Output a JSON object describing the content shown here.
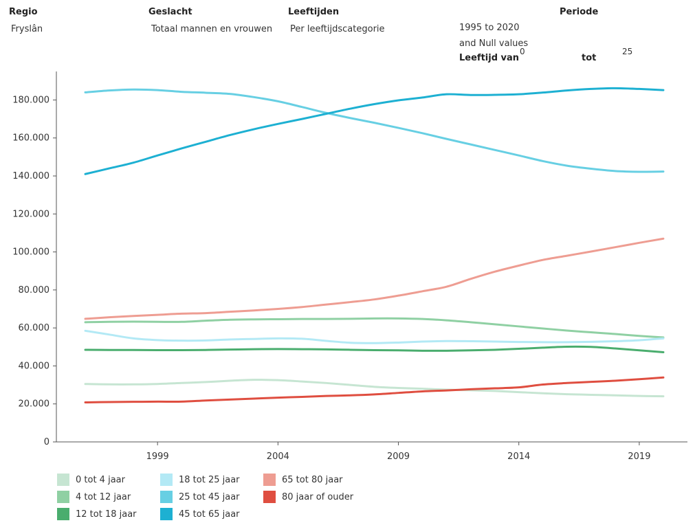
{
  "header": {
    "regio_label": "Regio",
    "regio_value": "Fryslân",
    "geslacht_label": "Geslacht",
    "geslacht_value": "Totaal mannen en vrouwen",
    "leeftijden_label": "Leeftijden",
    "leeftijden_value": "Per leeftijdscategorie",
    "periode_label": "Periode",
    "periode_value": "1995 to 2020",
    "periode_null": "and Null values",
    "leeftijd_van_label": "Leeftijd van",
    "leeftijd_van_value": "0",
    "tot_label": "tot",
    "tot_value": "25"
  },
  "chart_data": {
    "type": "line",
    "x": [
      1996,
      1997,
      1998,
      1999,
      2000,
      2001,
      2002,
      2003,
      2004,
      2005,
      2006,
      2007,
      2008,
      2009,
      2010,
      2011,
      2012,
      2013,
      2014,
      2015,
      2016,
      2017,
      2018,
      2019,
      2020
    ],
    "xticks": [
      1999,
      2004,
      2009,
      2014,
      2019
    ],
    "xlim": [
      1994.8,
      2021
    ],
    "ylim": [
      0,
      195000
    ],
    "yticks": [
      0,
      20000,
      40000,
      60000,
      80000,
      100000,
      120000,
      140000,
      160000,
      180000
    ],
    "ytick_labels": [
      "0",
      "20.000",
      "40.000",
      "60.000",
      "80.000",
      "100.000",
      "120.000",
      "140.000",
      "160.000",
      "180.000"
    ],
    "grid": false,
    "legend_position": "bottom-left",
    "series": [
      {
        "name": "0 tot 4 jaar",
        "color": "#c6e5d2",
        "values": [
          30500,
          30300,
          30300,
          30500,
          31000,
          31500,
          32200,
          32700,
          32500,
          31800,
          31000,
          30000,
          29000,
          28400,
          28000,
          27500,
          27200,
          26800,
          26200,
          25600,
          25100,
          24800,
          24500,
          24200,
          24000
        ]
      },
      {
        "name": "4 tot 12 jaar",
        "color": "#8fd0a3",
        "values": [
          63000,
          63200,
          63300,
          63200,
          63200,
          63800,
          64300,
          64500,
          64600,
          64700,
          64700,
          64800,
          65000,
          65000,
          64700,
          64000,
          63000,
          61900,
          60800,
          59700,
          58600,
          57700,
          56800,
          55800,
          55000
        ]
      },
      {
        "name": "12 tot 18 jaar",
        "color": "#4aad6e",
        "values": [
          48500,
          48400,
          48400,
          48300,
          48300,
          48400,
          48600,
          48800,
          48900,
          48800,
          48700,
          48500,
          48300,
          48200,
          48000,
          48000,
          48200,
          48500,
          49000,
          49600,
          50100,
          50000,
          49200,
          48200,
          47200
        ]
      },
      {
        "name": "18 tot 25 jaar",
        "color": "#b3e9f5",
        "values": [
          58500,
          56500,
          54500,
          53600,
          53300,
          53400,
          53900,
          54200,
          54500,
          54300,
          53200,
          52200,
          52000,
          52300,
          52800,
          53100,
          53000,
          52800,
          52600,
          52500,
          52500,
          52700,
          53000,
          53500,
          54500
        ]
      },
      {
        "name": "25 tot 45 jaar",
        "color": "#67cfe3",
        "values": [
          184000,
          185000,
          185500,
          185200,
          184300,
          183800,
          183200,
          181500,
          179300,
          176300,
          173200,
          170500,
          168000,
          165300,
          162500,
          159500,
          156600,
          153700,
          150800,
          147800,
          145400,
          143800,
          142600,
          142200,
          142300
        ]
      },
      {
        "name": "45 tot 65 jaar",
        "color": "#1db0d2",
        "values": [
          141000,
          144000,
          147000,
          150800,
          154500,
          158000,
          161500,
          164600,
          167400,
          170000,
          172700,
          175400,
          177800,
          179800,
          181300,
          183000,
          182600,
          182700,
          183000,
          183900,
          185000,
          185800,
          186200,
          185800,
          185200
        ]
      },
      {
        "name": "65 tot 80 jaar",
        "color": "#ee9d92",
        "values": [
          64800,
          65600,
          66300,
          66900,
          67500,
          67800,
          68500,
          69200,
          70000,
          71000,
          72300,
          73600,
          75000,
          77000,
          79300,
          81700,
          85800,
          89600,
          92800,
          95800,
          98000,
          100200,
          102500,
          104800,
          107000
        ]
      },
      {
        "name": "80 jaar of ouder",
        "color": "#df4e40",
        "values": [
          20800,
          21000,
          21100,
          21200,
          21200,
          21800,
          22300,
          22800,
          23300,
          23700,
          24200,
          24500,
          25000,
          25800,
          26600,
          27100,
          27700,
          28200,
          28700,
          30200,
          31000,
          31600,
          32200,
          33000,
          33900
        ]
      }
    ]
  }
}
